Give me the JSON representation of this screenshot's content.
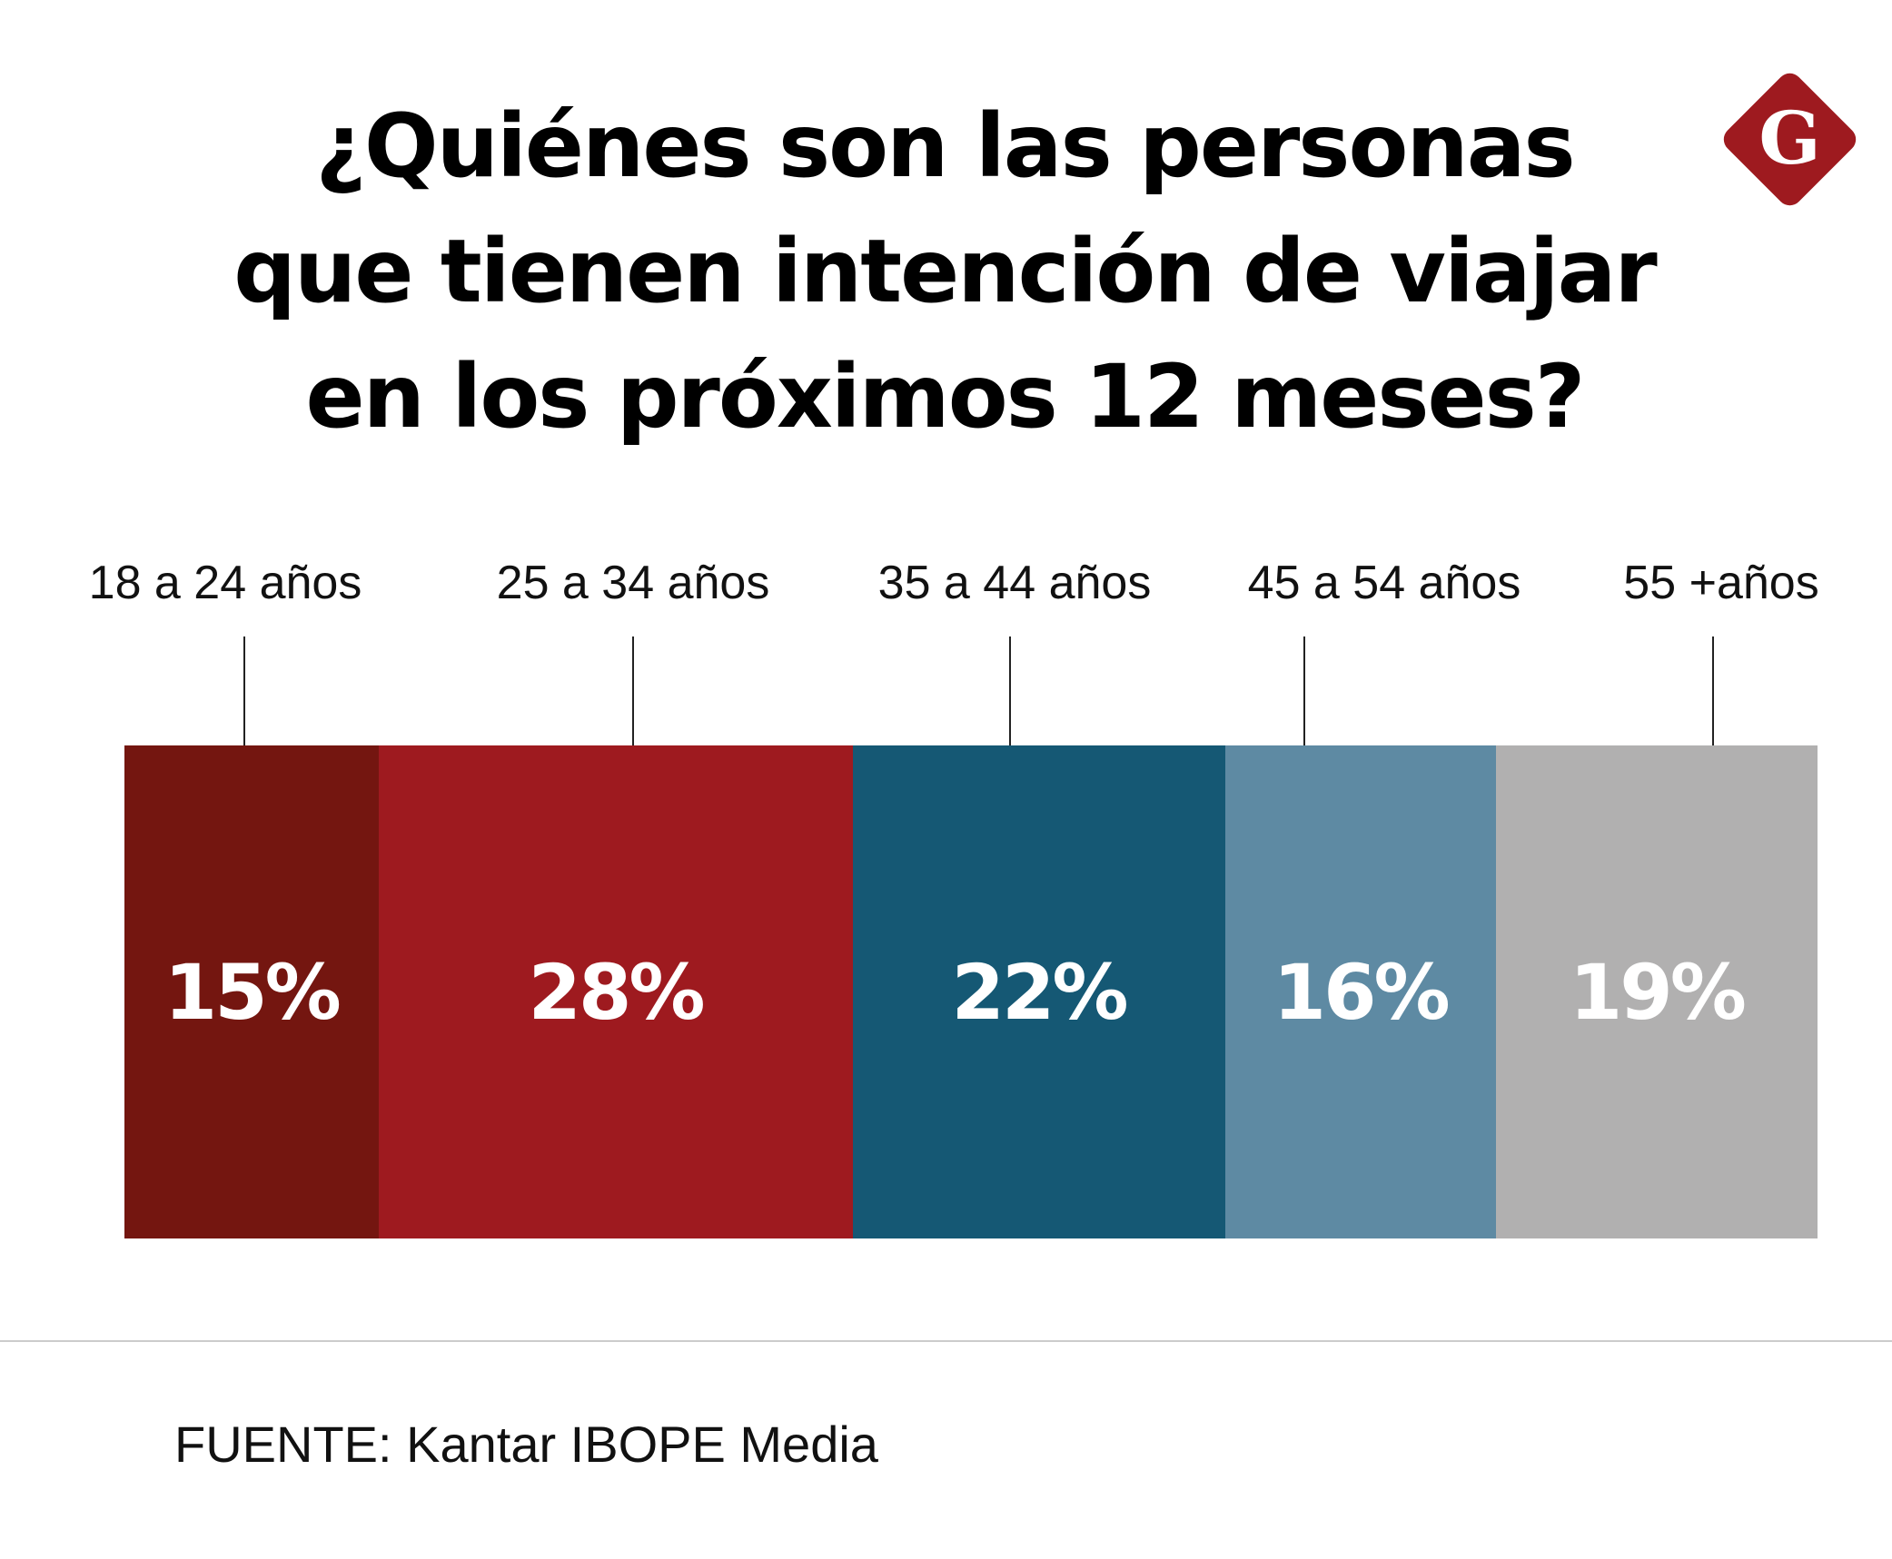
{
  "chart_data": {
    "type": "bar",
    "subtype": "stacked-100-horizontal",
    "title": [
      "¿Quiénes son las personas",
      "que tienen intención de viajar",
      "en los próximos 12 meses?"
    ],
    "categories": [
      "18 a 24 años",
      "25 a 34 años",
      "35 a 44 años",
      "45 a 54 años",
      "55 +años"
    ],
    "values": [
      15,
      28,
      22,
      16,
      19
    ],
    "data_labels": [
      "15%",
      "28%",
      "22%",
      "16%",
      "19%"
    ],
    "colors": [
      "#741610",
      "#9e1a1f",
      "#155874",
      "#5e8aa3",
      "#b1b0b0"
    ],
    "grid": false,
    "legend": "none"
  },
  "source": "FUENTE: Kantar IBOPE Media",
  "logo": {
    "letter": "G",
    "color": "#9e1a1f"
  }
}
